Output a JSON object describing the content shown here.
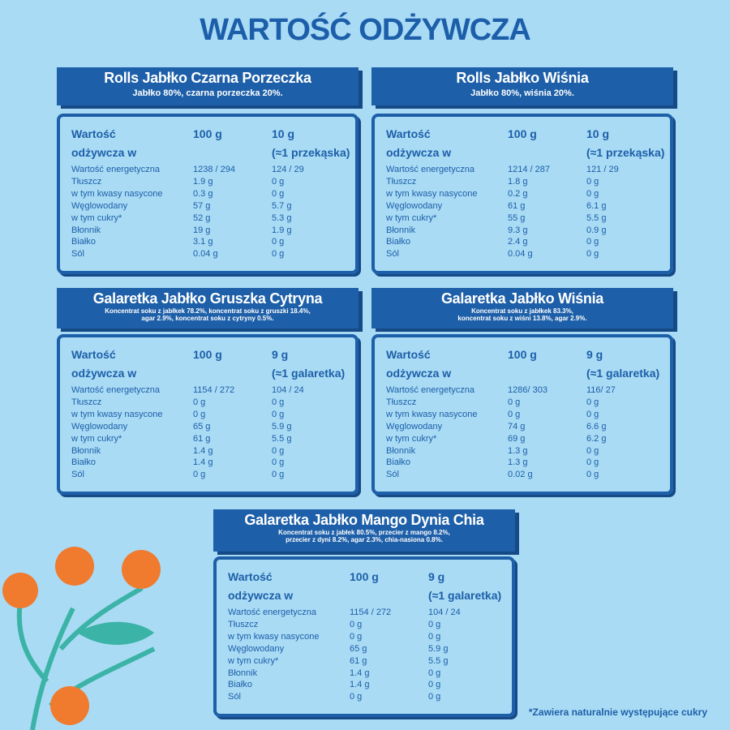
{
  "title": "WARTOŚĆ ODŻYWCZA",
  "products": [
    {
      "name": "Rolls Jabłko Czarna Porzeczka",
      "ingredients": [
        "Jabłko 80%, czarna porzeczka 20%."
      ],
      "columns": [
        [
          "Wartość",
          "odżywcza w"
        ],
        [
          "100 g"
        ],
        [
          "10 g",
          "(≈1 przekąska)"
        ]
      ],
      "rows": [
        [
          "Wartość energetyczna",
          "1238 / 294",
          "124 / 29"
        ],
        [
          "Tłuszcz",
          "1.9 g",
          "0 g"
        ],
        [
          "w tym kwasy nasycone",
          "0.3 g",
          "0 g"
        ],
        [
          "Węglowodany",
          "57 g",
          "5.7 g"
        ],
        [
          "w tym cukry*",
          "52 g",
          "5.3 g"
        ],
        [
          "Błonnik",
          "19 g",
          "1.9 g"
        ],
        [
          "Białko",
          "3.1 g",
          "0 g"
        ],
        [
          "Sól",
          "0.04 g",
          "0 g"
        ]
      ]
    },
    {
      "name": "Rolls Jabłko Wiśnia",
      "ingredients": [
        "Jabłko 80%, wiśnia 20%."
      ],
      "columns": [
        [
          "Wartość",
          "odżywcza w"
        ],
        [
          "100 g"
        ],
        [
          "10 g",
          "(≈1 przekąska)"
        ]
      ],
      "rows": [
        [
          "Wartość energetyczna",
          "1214 / 287",
          "121 / 29"
        ],
        [
          "Tłuszcz",
          "1.8 g",
          "0 g"
        ],
        [
          "w tym kwasy nasycone",
          "0.2 g",
          "0 g"
        ],
        [
          "Węglowodany",
          "61 g",
          "6.1 g"
        ],
        [
          "w tym cukry*",
          "55 g",
          "5.5 g"
        ],
        [
          "Błonnik",
          "9.3 g",
          "0.9 g"
        ],
        [
          "Białko",
          "2.4 g",
          "0 g"
        ],
        [
          "Sól",
          "0.04 g",
          "0 g"
        ]
      ]
    },
    {
      "name": "Galaretka Jabłko Gruszka Cytryna",
      "ingredients": [
        "Koncentrat soku z jabłkek 78.2%, koncentrat soku z gruszki 18.4%,",
        "agar 2.9%, koncentrat soku z cytryny 0.5%."
      ],
      "columns": [
        [
          "Wartość",
          "odżywcza w"
        ],
        [
          "100 g"
        ],
        [
          "9 g",
          "(≈1 galaretka)"
        ]
      ],
      "rows": [
        [
          "Wartość energetyczna",
          "1154 / 272",
          "104 / 24"
        ],
        [
          "Tłuszcz",
          "0 g",
          "0 g"
        ],
        [
          "w tym kwasy nasycone",
          "0 g",
          "0 g"
        ],
        [
          "Węglowodany",
          "65 g",
          "5.9 g"
        ],
        [
          "w tym cukry*",
          "61 g",
          "5.5 g"
        ],
        [
          "Błonnik",
          "1.4 g",
          "0 g"
        ],
        [
          "Białko",
          "1.4 g",
          "0 g"
        ],
        [
          "Sól",
          "0 g",
          "0 g"
        ]
      ]
    },
    {
      "name": "Galaretka Jabłko Wiśnia",
      "ingredients": [
        "Koncentrat soku z jabłkek 83.3%,",
        "koncentrat soku z wiśni 13.8%, agar 2.9%."
      ],
      "columns": [
        [
          "Wartość",
          "odżywcza w"
        ],
        [
          "100 g"
        ],
        [
          "9 g",
          "(≈1 galaretka)"
        ]
      ],
      "rows": [
        [
          "Wartość energetyczna",
          "1286/ 303",
          "116/ 27"
        ],
        [
          "Tłuszcz",
          "0 g",
          "0 g"
        ],
        [
          "w tym kwasy nasycone",
          "0 g",
          "0 g"
        ],
        [
          "Węglowodany",
          "74 g",
          "6.6 g"
        ],
        [
          "w tym cukry*",
          "69 g",
          "6.2 g"
        ],
        [
          "Błonnik",
          "1.3 g",
          "0 g"
        ],
        [
          "Białko",
          "1.3 g",
          "0 g"
        ],
        [
          "Sól",
          "0.02 g",
          "0 g"
        ]
      ]
    },
    {
      "name": "Galaretka Jabłko Mango Dynia Chia",
      "ingredients": [
        "Koncentrat soku z jabłek 80.5%, przecier z mango 8.2%,",
        "przecier z dyni 8.2%, agar 2.3%, chia-nasiona 0.8%."
      ],
      "columns": [
        [
          "Wartość",
          "odżywcza w"
        ],
        [
          "100 g"
        ],
        [
          "9 g",
          "(≈1 galaretka)"
        ]
      ],
      "rows": [
        [
          "Wartość energetyczna",
          "1154 / 272",
          "104 / 24"
        ],
        [
          "Tłuszcz",
          "0 g",
          "0 g"
        ],
        [
          "w tym kwasy nasycone",
          "0 g",
          "0 g"
        ],
        [
          "Węglowodany",
          "65 g",
          "5.9 g"
        ],
        [
          "w tym cukry*",
          "61 g",
          "5.5 g"
        ],
        [
          "Błonnik",
          "1.4 g",
          "0 g"
        ],
        [
          "Białko",
          "1.4 g",
          "0 g"
        ],
        [
          "Sól",
          "0 g",
          "0 g"
        ]
      ]
    }
  ],
  "footnote": "*Zawiera naturalnie występujące cukry"
}
